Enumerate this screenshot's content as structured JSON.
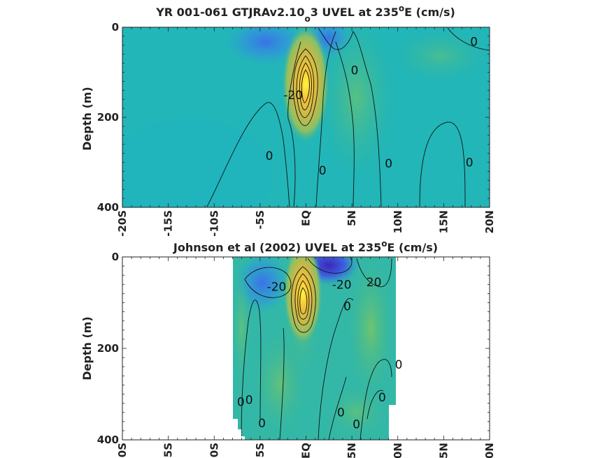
{
  "chart_data": [
    {
      "type": "heatmap",
      "title_main": "YR 001-061 GTJRAv2.10",
      "title_sub": "o",
      "title_tail": "3 UVEL at 235",
      "title_sup": "o",
      "title_end": "E (cm/s)",
      "ylabel": "Depth (m)",
      "xlim": [
        -20,
        20
      ],
      "ylim": [
        0,
        400
      ],
      "xticks": [
        -20,
        -15,
        -10,
        -5,
        0,
        5,
        10,
        15,
        20
      ],
      "xtick_labels": [
        "-20S",
        "-15S",
        "-10S",
        "-5S",
        "EQ",
        "5N",
        "10N",
        "15N",
        "20N"
      ],
      "yticks": [
        0,
        200,
        400
      ],
      "ytick_labels": [
        "0",
        "200",
        "400"
      ],
      "data_xrange": [
        -20,
        20
      ],
      "core": {
        "lat": 0,
        "depth": 110,
        "speed": 100
      },
      "contour_labels": [
        {
          "text": "0",
          "lat": 18.3,
          "depth": 32
        },
        {
          "text": "0",
          "lat": 5.3,
          "depth": 95
        },
        {
          "text": "0",
          "lat": -4,
          "depth": 285
        },
        {
          "text": "0",
          "lat": 1.8,
          "depth": 318
        },
        {
          "text": "0",
          "lat": 9,
          "depth": 302
        },
        {
          "text": "0",
          "lat": 17.8,
          "depth": 300
        },
        {
          "text": "-20",
          "lat": -1.4,
          "depth": 150
        }
      ]
    },
    {
      "type": "heatmap",
      "title_main": "Johnson et al (2002) UVEL at 235",
      "title_sup": "o",
      "title_end": "E (cm/s)",
      "ylabel": "Depth (m)",
      "xlim": [
        -20,
        20
      ],
      "ylim": [
        0,
        400
      ],
      "xticks": [
        -20,
        -15,
        -10,
        -5,
        0,
        5,
        10,
        15,
        20
      ],
      "xtick_labels": [
        "-20S",
        "-15S",
        "-10S",
        "-5S",
        "EQ",
        "5N",
        "10N",
        "15N",
        "20N"
      ],
      "yticks": [
        0,
        200,
        400
      ],
      "ytick_labels": [
        "0",
        "200",
        "400"
      ],
      "data_xrange": [
        -8,
        10
      ],
      "core": {
        "lat": 0,
        "depth": 90,
        "speed": 100
      },
      "contour_labels": [
        {
          "text": "-20",
          "lat": -3.2,
          "depth": 65
        },
        {
          "text": "-20",
          "lat": 3.9,
          "depth": 60
        },
        {
          "text": "20",
          "lat": 7.4,
          "depth": 55
        },
        {
          "text": "0",
          "lat": 4.5,
          "depth": 108
        },
        {
          "text": "0",
          "lat": 10.1,
          "depth": 235
        },
        {
          "text": "0",
          "lat": -6.2,
          "depth": 312
        },
        {
          "text": "0",
          "lat": -7.1,
          "depth": 317
        },
        {
          "text": "0",
          "lat": 8.3,
          "depth": 307
        },
        {
          "text": "0",
          "lat": 3.8,
          "depth": 340
        },
        {
          "text": "0",
          "lat": -4.8,
          "depth": 363
        },
        {
          "text": "0",
          "lat": 5.5,
          "depth": 366
        }
      ]
    }
  ]
}
